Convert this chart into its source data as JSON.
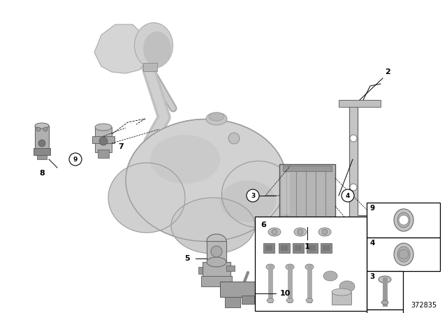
{
  "bg_color": "#ffffff",
  "fig_width": 6.4,
  "fig_height": 4.48,
  "dpi": 100,
  "part_number": "372835",
  "tank_color": "#c8c8c8",
  "tank_edge": "#999999",
  "part_color": "#b0b0b0",
  "part_edge": "#666666",
  "dark_part": "#888888",
  "box_fill": "#ffffff",
  "box_edge": "#000000",
  "line_color": "#000000",
  "label_fontsize": 7.5,
  "small_label_fontsize": 6.5
}
